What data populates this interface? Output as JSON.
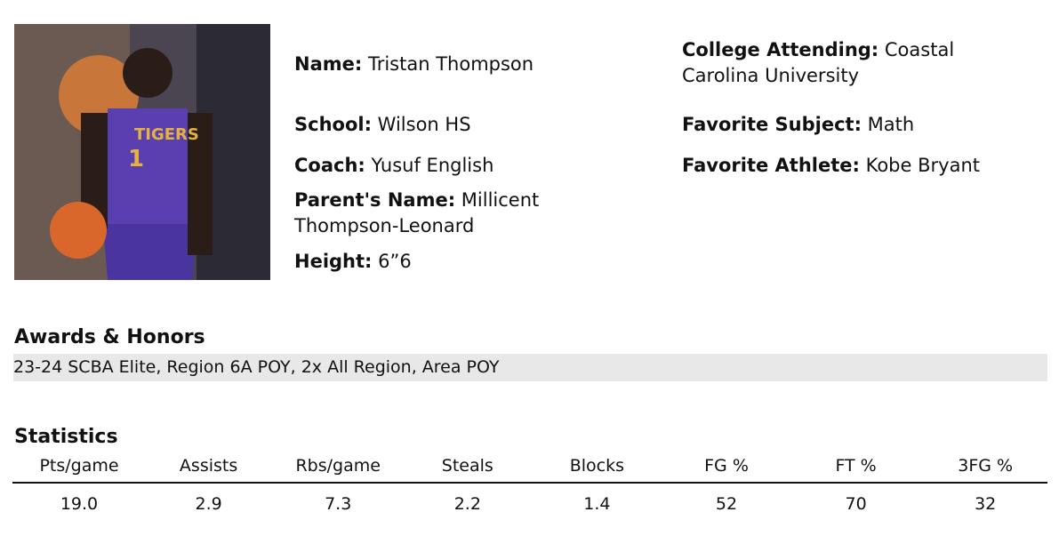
{
  "profile": {
    "left": [
      {
        "label": "Name:",
        "value": "Tristan Thompson"
      },
      {
        "label": "School:",
        "value": "Wilson HS"
      },
      {
        "label": "Coach:",
        "value": "Yusuf English"
      },
      {
        "label": "Parent's Name:",
        "value": "Millicent Thompson-Leonard"
      },
      {
        "label": "Height:",
        "value": "6”6"
      }
    ],
    "right": [
      {
        "label": "College Attending:",
        "value": "Coastal Carolina University"
      },
      {
        "label": "Favorite Subject:",
        "value": "Math"
      },
      {
        "label": "Favorite Athlete:",
        "value": "Kobe Bryant"
      }
    ]
  },
  "awards": {
    "title": "Awards & Honors",
    "text": "23-24 SCBA Elite, Region 6A POY, 2x All Region, Area POY"
  },
  "statistics": {
    "title": "Statistics",
    "headers": [
      "Pts/game",
      "Assists",
      "Rbs/game",
      "Steals",
      "Blocks",
      "FG %",
      "FT %",
      "3FG %"
    ],
    "values": [
      "19.0",
      "2.9",
      "7.3",
      "2.2",
      "1.4",
      "52",
      "70",
      "32"
    ]
  }
}
